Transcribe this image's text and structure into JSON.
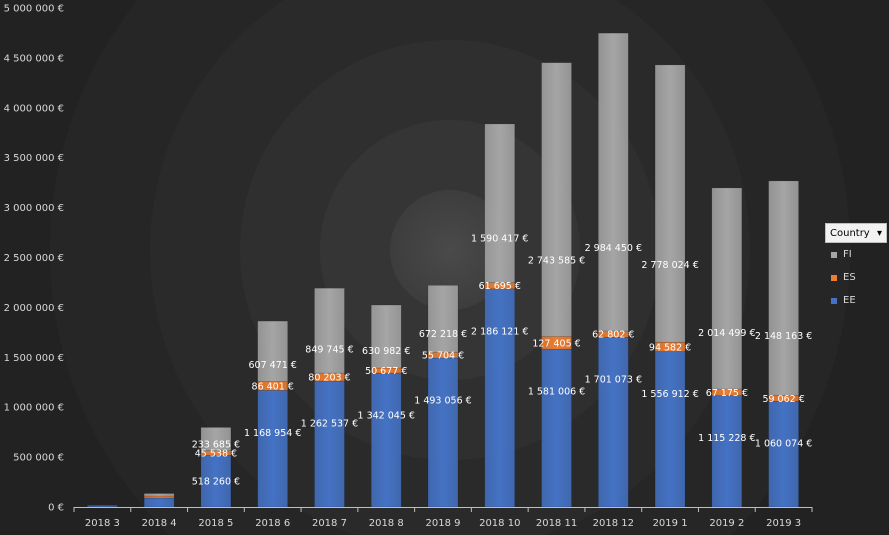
{
  "chart_data": {
    "type": "bar",
    "stacked": true,
    "categories": [
      "2018 3",
      "2018 4",
      "2018 5",
      "2018 6",
      "2018 7",
      "2018 8",
      "2018 9",
      "2018 10",
      "2018 11",
      "2018 12",
      "2019 1",
      "2019 2",
      "2019 3"
    ],
    "series": [
      {
        "name": "EE",
        "color": "#4472c4",
        "values": [
          10000,
          90000,
          518260,
          1168954,
          1262537,
          1342045,
          1493056,
          2186121,
          1581006,
          1701073,
          1556912,
          1115228,
          1060074
        ]
      },
      {
        "name": "ES",
        "color": "#ed7d31",
        "values": [
          0,
          20000,
          45538,
          86401,
          80203,
          50677,
          55704,
          61695,
          127405,
          62802,
          94582,
          67175,
          59062
        ]
      },
      {
        "name": "FI",
        "color": "#a5a5a5",
        "values": [
          5000,
          25000,
          233685,
          607471,
          849745,
          630982,
          672218,
          1590417,
          2743585,
          2984450,
          2778024,
          2014499,
          2148163
        ]
      }
    ],
    "data_labels": [
      {
        "EE": "",
        "ES": "",
        "FI": ""
      },
      {
        "EE": "",
        "ES": "",
        "FI": ""
      },
      {
        "EE": "518 260 €",
        "ES": "45 538 €",
        "FI": "233 685 €"
      },
      {
        "EE": "1 168 954 €",
        "ES": "86 401 €",
        "FI": "607 471 €"
      },
      {
        "EE": "1 262 537 €",
        "ES": "80 203 €",
        "FI": "849 745 €"
      },
      {
        "EE": "1 342 045 €",
        "ES": "50 677 €",
        "FI": "630 982 €"
      },
      {
        "EE": "1 493 056 €",
        "ES": "55 704 €",
        "FI": "672 218 €"
      },
      {
        "EE": "2 186 121 €",
        "ES": "61 695 €",
        "FI": "1 590 417 €"
      },
      {
        "EE": "1 581 006 €",
        "ES": "127 405 €",
        "FI": "2 743 585 €"
      },
      {
        "EE": "1 701 073 €",
        "ES": "62 802 €",
        "FI": "2 984 450 €"
      },
      {
        "EE": "1 556 912 €",
        "ES": "94 582 €",
        "FI": "2 778 024 €"
      },
      {
        "EE": "1 115 228 €",
        "ES": "67 175 €",
        "FI": "2 014 499 €"
      },
      {
        "EE": "1 060 074 €",
        "ES": "59 062 €",
        "FI": "2 148 163 €"
      }
    ],
    "ylim": [
      0,
      5000000
    ],
    "yticks": [
      0,
      500000,
      1000000,
      1500000,
      2000000,
      2500000,
      3000000,
      3500000,
      4000000,
      4500000,
      5000000
    ],
    "ytick_labels": [
      "0 €",
      "500 000 €",
      "1 000 000 €",
      "1 500 000 €",
      "2 000 000 €",
      "2 500 000 €",
      "3 000 000 €",
      "3 500 000 €",
      "4 000 000 €",
      "4 500 000 €",
      "5 000 000 €"
    ],
    "title": "",
    "xlabel": "",
    "ylabel": "",
    "grid": false,
    "legend_position": "right"
  },
  "legend": {
    "title": "Country",
    "dropdown_icon": "triangle-down",
    "items": [
      {
        "label": "FI",
        "color": "#a5a5a5"
      },
      {
        "label": "ES",
        "color": "#ed7d31"
      },
      {
        "label": "EE",
        "color": "#4472c4"
      }
    ]
  }
}
